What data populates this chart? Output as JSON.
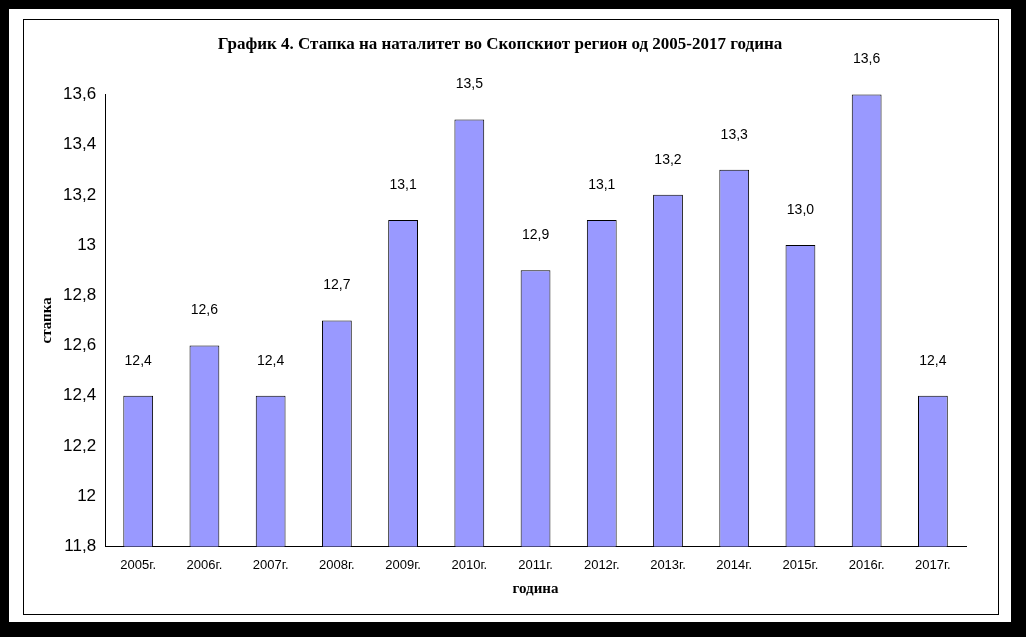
{
  "chart_data": {
    "type": "bar",
    "title": "График 4. Стапка на наталитет во Скопскиот регион од 2005-2017 година",
    "xlabel": "година",
    "ylabel": "стапка",
    "categories": [
      "2005г.",
      "2006г.",
      "2007г.",
      "2008г.",
      "2009г.",
      "2010г.",
      "2011г.",
      "2012г.",
      "2013г.",
      "2014г.",
      "2015г.",
      "2016г.",
      "2017г."
    ],
    "values": [
      12.4,
      12.6,
      12.4,
      12.7,
      13.1,
      13.5,
      12.9,
      13.1,
      13.2,
      13.3,
      13.0,
      13.6,
      12.4
    ],
    "value_labels": [
      "12,4",
      "12,6",
      "12,4",
      "12,7",
      "13,1",
      "13,5",
      "12,9",
      "13,1",
      "13,2",
      "13,3",
      "13,0",
      "13,6",
      "12,4"
    ],
    "color": "#9999ff",
    "ylim": [
      11.8,
      13.6
    ],
    "yticks": [
      {
        "value": 11.8,
        "label": "11,8"
      },
      12,
      {
        "value": 12.2,
        "label": "12,2"
      },
      {
        "value": 12.4,
        "label": "12,4"
      },
      {
        "value": 12.6,
        "label": "12,6"
      },
      {
        "value": 12.8,
        "label": "12,8"
      },
      13,
      {
        "value": 13.2,
        "label": "13,2"
      },
      {
        "value": 13.4,
        "label": "13,4"
      },
      {
        "value": 13.6,
        "label": "13,6"
      }
    ],
    "grid": false,
    "legend": false
  }
}
